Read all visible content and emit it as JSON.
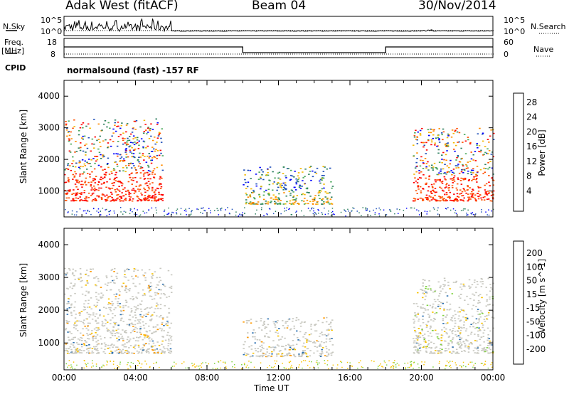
{
  "header": {
    "station": "Adak West (fitACF)",
    "beam": "Beam 04",
    "date": "30/Nov/2014"
  },
  "left_labels": {
    "nsky": "N.Sky",
    "freq": "Freq.",
    "freq_unit": "[MHz]",
    "cpid": "CPID"
  },
  "right_labels": {
    "nsearch": "N.Search",
    "nave": "Nave"
  },
  "noise_panel": {
    "left_ticks": [
      "10^5",
      "10^0"
    ],
    "right_ticks": [
      "10^5",
      "10^0"
    ]
  },
  "freq_panel": {
    "left_ticks": [
      "18",
      "8"
    ],
    "right_ticks": [
      "60",
      "0"
    ]
  },
  "cpid_text": "normalsound (fast) -157 RF",
  "x_axis": {
    "label": "Time UT",
    "ticks": [
      "00:00",
      "04:00",
      "08:00",
      "12:00",
      "16:00",
      "20:00",
      "00:00"
    ]
  },
  "colors": {
    "power_scale": [
      "#0000ff",
      "#1f4fb8",
      "#2f8060",
      "#4aa85a",
      "#f2b800",
      "#ff8c00",
      "#ff5000",
      "#ff0000"
    ],
    "velocity_scale": [
      "#ff0000",
      "#ff5500",
      "#ff9900",
      "#f7c200",
      "#c8c8c0",
      "#c8c8c0",
      "#7fd13f",
      "#3cb04a",
      "#2a6fb0",
      "#1a2aa0"
    ]
  },
  "chart_data": [
    {
      "type": "heatmap",
      "title": "Power",
      "ylabel": "Slant Range [km]",
      "xlabel": "",
      "ylim": [
        180,
        4500
      ],
      "xlim": [
        0,
        24
      ],
      "y_ticks": [
        "1000",
        "2000",
        "3000",
        "4000"
      ],
      "colorbar": {
        "label": "Power [dB]",
        "ticks": [
          "28",
          "24",
          "20",
          "16",
          "12",
          "8",
          "4"
        ]
      },
      "regions": [
        {
          "t_start": 0.0,
          "t_end": 5.5,
          "range_low": 700,
          "range_high": 3300,
          "level": "high"
        },
        {
          "t_start": 10.0,
          "t_end": 15.0,
          "range_low": 600,
          "range_high": 1800,
          "level": "medium"
        },
        {
          "t_start": 19.5,
          "t_end": 24.0,
          "range_low": 700,
          "range_high": 3000,
          "level": "high"
        }
      ]
    },
    {
      "type": "heatmap",
      "title": "Velocity",
      "ylabel": "Slant Range [km]",
      "xlabel": "Time UT",
      "ylim": [
        180,
        4500
      ],
      "xlim": [
        0,
        24
      ],
      "y_ticks": [
        "1000",
        "2000",
        "3000",
        "4000"
      ],
      "colorbar": {
        "label": "Velocity [m s^-1]",
        "ticks": [
          "200",
          "100",
          "50",
          "15",
          "-15",
          "-50",
          "-100",
          "-200"
        ]
      },
      "regions": [
        {
          "t_start": 0.0,
          "t_end": 6.0,
          "range_low": 700,
          "range_high": 3300,
          "level": "near-zero"
        },
        {
          "t_start": 10.0,
          "t_end": 15.0,
          "range_low": 600,
          "range_high": 1800,
          "level": "near-zero"
        },
        {
          "t_start": 19.5,
          "t_end": 24.0,
          "range_low": 700,
          "range_high": 3000,
          "level": "near-zero"
        }
      ]
    }
  ]
}
